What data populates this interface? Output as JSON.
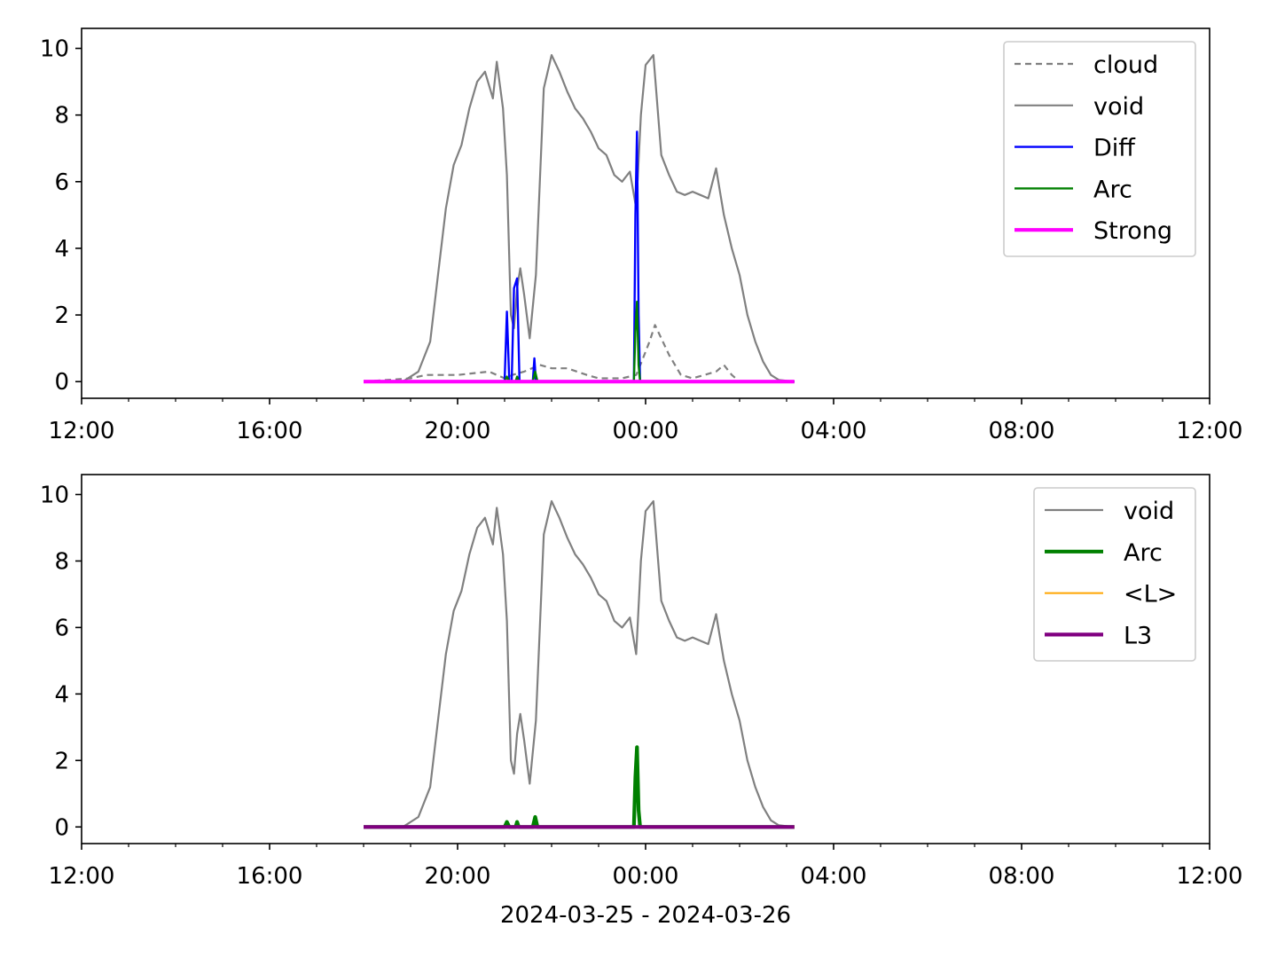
{
  "colors": {
    "void": "#808080",
    "cloud": "#808080",
    "diff": "#0000ff",
    "arc": "#008000",
    "strong": "#ff00ff",
    "mean_l": "#ffa500",
    "l3": "#800080"
  },
  "x_axis_label": "2024-03-25 - 2024-03-26",
  "chart_data": [
    {
      "type": "line",
      "xlim": [
        "2024-03-25 12:00",
        "2024-03-26 12:00"
      ],
      "ylim": [
        -0.5,
        10.6
      ],
      "x_ticks": [
        "12:00",
        "16:00",
        "20:00",
        "00:00",
        "04:00",
        "08:00",
        "12:00"
      ],
      "y_ticks": [
        "0",
        "2",
        "4",
        "6",
        "8",
        "10"
      ],
      "legend_position": "top-right",
      "series": [
        {
          "name": "cloud",
          "style": "dashed",
          "x": [
            "2024-03-25 18:00",
            "2024-03-25 19:00",
            "2024-03-25 19:20",
            "2024-03-25 20:00",
            "2024-03-25 20:40",
            "2024-03-25 21:00",
            "2024-03-25 21:10",
            "2024-03-25 21:25",
            "2024-03-25 21:45",
            "2024-03-25 22:00",
            "2024-03-25 22:20",
            "2024-03-25 22:45",
            "2024-03-25 23:00",
            "2024-03-25 23:30",
            "2024-03-25 23:48",
            "2024-03-25 23:55",
            "2024-03-26 00:05",
            "2024-03-26 00:12",
            "2024-03-26 00:20",
            "2024-03-26 00:30",
            "2024-03-26 00:45",
            "2024-03-26 01:00",
            "2024-03-26 01:30",
            "2024-03-26 01:40",
            "2024-03-26 01:50",
            "2024-03-26 02:00",
            "2024-03-26 03:10"
          ],
          "y": [
            0,
            0.1,
            0.2,
            0.2,
            0.3,
            0.1,
            0.2,
            0.3,
            0.5,
            0.4,
            0.4,
            0.2,
            0.1,
            0.1,
            0.2,
            0.6,
            1.2,
            1.7,
            1.3,
            0.8,
            0.2,
            0.1,
            0.3,
            0.5,
            0.2,
            0,
            0
          ]
        },
        {
          "name": "void",
          "style": "solid",
          "x": [
            "2024-03-25 18:00",
            "2024-03-25 18:50",
            "2024-03-25 19:10",
            "2024-03-25 19:25",
            "2024-03-25 19:35",
            "2024-03-25 19:45",
            "2024-03-25 19:55",
            "2024-03-25 20:05",
            "2024-03-25 20:15",
            "2024-03-25 20:25",
            "2024-03-25 20:35",
            "2024-03-25 20:45",
            "2024-03-25 20:50",
            "2024-03-25 20:58",
            "2024-03-25 21:03",
            "2024-03-25 21:08",
            "2024-03-25 21:12",
            "2024-03-25 21:16",
            "2024-03-25 21:20",
            "2024-03-25 21:25",
            "2024-03-25 21:32",
            "2024-03-25 21:40",
            "2024-03-25 21:50",
            "2024-03-25 22:00",
            "2024-03-25 22:10",
            "2024-03-25 22:20",
            "2024-03-25 22:30",
            "2024-03-25 22:40",
            "2024-03-25 22:50",
            "2024-03-25 23:00",
            "2024-03-25 23:10",
            "2024-03-25 23:20",
            "2024-03-25 23:30",
            "2024-03-25 23:40",
            "2024-03-25 23:48",
            "2024-03-25 23:54",
            "2024-03-26 00:00",
            "2024-03-26 00:10",
            "2024-03-26 00:20",
            "2024-03-26 00:30",
            "2024-03-26 00:40",
            "2024-03-26 00:50",
            "2024-03-26 01:00",
            "2024-03-26 01:10",
            "2024-03-26 01:20",
            "2024-03-26 01:30",
            "2024-03-26 01:40",
            "2024-03-26 01:50",
            "2024-03-26 02:00",
            "2024-03-26 02:10",
            "2024-03-26 02:20",
            "2024-03-26 02:30",
            "2024-03-26 02:40",
            "2024-03-26 02:50",
            "2024-03-26 03:10"
          ],
          "y": [
            0,
            0,
            0.3,
            1.2,
            3.2,
            5.2,
            6.5,
            7.1,
            8.2,
            9.0,
            9.3,
            8.5,
            9.6,
            8.2,
            6.2,
            2.0,
            1.6,
            2.8,
            3.4,
            2.6,
            1.3,
            3.2,
            8.8,
            9.8,
            9.3,
            8.7,
            8.2,
            7.9,
            7.5,
            7.0,
            6.8,
            6.2,
            6.0,
            6.3,
            5.2,
            8.0,
            9.5,
            9.8,
            6.8,
            6.2,
            5.7,
            5.6,
            5.7,
            5.6,
            5.5,
            6.4,
            5.0,
            4.0,
            3.2,
            2.0,
            1.2,
            0.6,
            0.2,
            0.05,
            0
          ]
        },
        {
          "name": "Diff",
          "style": "solid",
          "x": [
            "2024-03-25 18:00",
            "2024-03-25 21:00",
            "2024-03-25 21:03",
            "2024-03-25 21:06",
            "2024-03-25 21:09",
            "2024-03-25 21:12",
            "2024-03-25 21:16",
            "2024-03-25 21:19",
            "2024-03-25 21:22",
            "2024-03-25 21:36",
            "2024-03-25 21:38",
            "2024-03-25 21:40",
            "2024-03-25 23:45",
            "2024-03-25 23:47",
            "2024-03-25 23:49",
            "2024-03-25 23:51",
            "2024-03-25 23:53",
            "2024-03-26 03:10"
          ],
          "y": [
            0,
            0,
            2.1,
            0,
            0,
            2.8,
            3.1,
            0,
            0,
            0,
            0.7,
            0,
            0,
            5.0,
            7.5,
            2.0,
            0,
            0
          ]
        },
        {
          "name": "Arc",
          "style": "solid",
          "x": [
            "2024-03-25 18:00",
            "2024-03-25 21:00",
            "2024-03-25 21:03",
            "2024-03-25 21:06",
            "2024-03-25 21:14",
            "2024-03-25 21:16",
            "2024-03-25 21:18",
            "2024-03-25 21:36",
            "2024-03-25 21:39",
            "2024-03-25 21:42",
            "2024-03-25 23:45",
            "2024-03-25 23:47",
            "2024-03-25 23:49",
            "2024-03-25 23:51",
            "2024-03-25 23:53",
            "2024-03-26 03:10"
          ],
          "y": [
            0,
            0,
            0.15,
            0,
            0,
            0.15,
            0,
            0,
            0.3,
            0,
            0,
            1.5,
            2.4,
            0.5,
            0,
            0
          ]
        },
        {
          "name": "Strong",
          "style": "solid",
          "x": [
            "2024-03-25 18:00",
            "2024-03-26 03:10"
          ],
          "y": [
            0,
            0
          ]
        }
      ]
    },
    {
      "type": "line",
      "xlim": [
        "2024-03-25 12:00",
        "2024-03-26 12:00"
      ],
      "ylim": [
        -0.5,
        10.6
      ],
      "x_ticks": [
        "12:00",
        "16:00",
        "20:00",
        "00:00",
        "04:00",
        "08:00",
        "12:00"
      ],
      "y_ticks": [
        "0",
        "2",
        "4",
        "6",
        "8",
        "10"
      ],
      "xlabel": "2024-03-25 - 2024-03-26",
      "legend_position": "top-right",
      "series": [
        {
          "name": "void",
          "style": "solid",
          "x": [
            "2024-03-25 18:00",
            "2024-03-25 18:50",
            "2024-03-25 19:10",
            "2024-03-25 19:25",
            "2024-03-25 19:35",
            "2024-03-25 19:45",
            "2024-03-25 19:55",
            "2024-03-25 20:05",
            "2024-03-25 20:15",
            "2024-03-25 20:25",
            "2024-03-25 20:35",
            "2024-03-25 20:45",
            "2024-03-25 20:50",
            "2024-03-25 20:58",
            "2024-03-25 21:03",
            "2024-03-25 21:08",
            "2024-03-25 21:12",
            "2024-03-25 21:16",
            "2024-03-25 21:20",
            "2024-03-25 21:25",
            "2024-03-25 21:32",
            "2024-03-25 21:40",
            "2024-03-25 21:50",
            "2024-03-25 22:00",
            "2024-03-25 22:10",
            "2024-03-25 22:20",
            "2024-03-25 22:30",
            "2024-03-25 22:40",
            "2024-03-25 22:50",
            "2024-03-25 23:00",
            "2024-03-25 23:10",
            "2024-03-25 23:20",
            "2024-03-25 23:30",
            "2024-03-25 23:40",
            "2024-03-25 23:48",
            "2024-03-25 23:54",
            "2024-03-26 00:00",
            "2024-03-26 00:10",
            "2024-03-26 00:20",
            "2024-03-26 00:30",
            "2024-03-26 00:40",
            "2024-03-26 00:50",
            "2024-03-26 01:00",
            "2024-03-26 01:10",
            "2024-03-26 01:20",
            "2024-03-26 01:30",
            "2024-03-26 01:40",
            "2024-03-26 01:50",
            "2024-03-26 02:00",
            "2024-03-26 02:10",
            "2024-03-26 02:20",
            "2024-03-26 02:30",
            "2024-03-26 02:40",
            "2024-03-26 02:50",
            "2024-03-26 03:10"
          ],
          "y": [
            0,
            0,
            0.3,
            1.2,
            3.2,
            5.2,
            6.5,
            7.1,
            8.2,
            9.0,
            9.3,
            8.5,
            9.6,
            8.2,
            6.2,
            2.0,
            1.6,
            2.8,
            3.4,
            2.6,
            1.3,
            3.2,
            8.8,
            9.8,
            9.3,
            8.7,
            8.2,
            7.9,
            7.5,
            7.0,
            6.8,
            6.2,
            6.0,
            6.3,
            5.2,
            8.0,
            9.5,
            9.8,
            6.8,
            6.2,
            5.7,
            5.6,
            5.7,
            5.6,
            5.5,
            6.4,
            5.0,
            4.0,
            3.2,
            2.0,
            1.2,
            0.6,
            0.2,
            0.05,
            0
          ]
        },
        {
          "name": "Arc",
          "style": "solid",
          "x": [
            "2024-03-25 18:00",
            "2024-03-25 21:00",
            "2024-03-25 21:03",
            "2024-03-25 21:06",
            "2024-03-25 21:14",
            "2024-03-25 21:16",
            "2024-03-25 21:18",
            "2024-03-25 21:36",
            "2024-03-25 21:39",
            "2024-03-25 21:42",
            "2024-03-25 23:45",
            "2024-03-25 23:47",
            "2024-03-25 23:49",
            "2024-03-25 23:51",
            "2024-03-25 23:53",
            "2024-03-26 03:10"
          ],
          "y": [
            0,
            0,
            0.15,
            0,
            0,
            0.15,
            0,
            0,
            0.3,
            0,
            0,
            1.5,
            2.4,
            0.5,
            0,
            0
          ]
        },
        {
          "name": "<L>",
          "style": "solid",
          "x": [
            "2024-03-25 18:00",
            "2024-03-26 03:10"
          ],
          "y": [
            0,
            0
          ]
        },
        {
          "name": "L3",
          "style": "solid",
          "x": [
            "2024-03-25 18:00",
            "2024-03-26 03:10"
          ],
          "y": [
            0,
            0
          ]
        }
      ]
    }
  ]
}
